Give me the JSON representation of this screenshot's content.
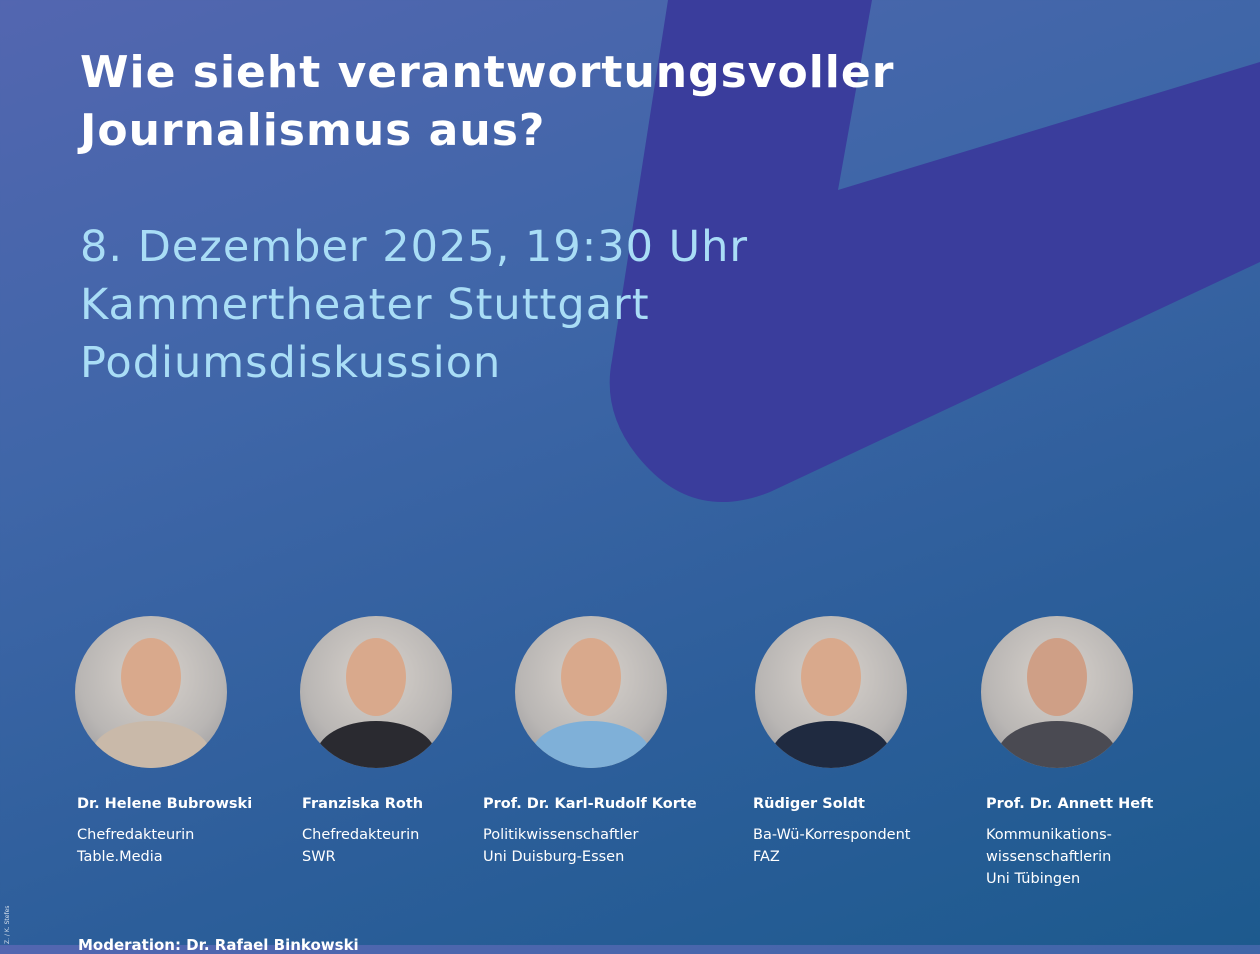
{
  "title": [
    "Wie sieht verantwortungsvoller",
    "Journalismus aus?"
  ],
  "event": {
    "date": "8. Dezember 2025, 19:30 Uhr",
    "venue": "Kammertheater Stuttgart",
    "format": "Podiumsdiskussion"
  },
  "speakers": [
    {
      "name": "Dr. Helene Bubrowski",
      "role": [
        "Chefredakteurin",
        "Table.Media"
      ]
    },
    {
      "name": "Franziska Roth",
      "role": [
        "Chefredakteurin",
        "SWR"
      ]
    },
    {
      "name": "Prof. Dr. Karl-Rudolf Korte",
      "role": [
        "Politikwissenschaftler",
        "Uni Duisburg-Essen"
      ]
    },
    {
      "name": "Rüdiger Soldt",
      "role": [
        "Ba-Wü-Korrespondent",
        "FAZ"
      ]
    },
    {
      "name": "Prof. Dr. Annett Heft",
      "role": [
        "Kommunikations-",
        "wissenschaftlerin",
        "Uni Tübingen"
      ]
    }
  ],
  "moderation": "Moderation: Dr. Rafael Binkowski",
  "photo_credit": "Z. / K. Stefes",
  "colors": {
    "shape": "#3a3d9c",
    "title": "#ffffff",
    "info": "#a9ddf6"
  }
}
